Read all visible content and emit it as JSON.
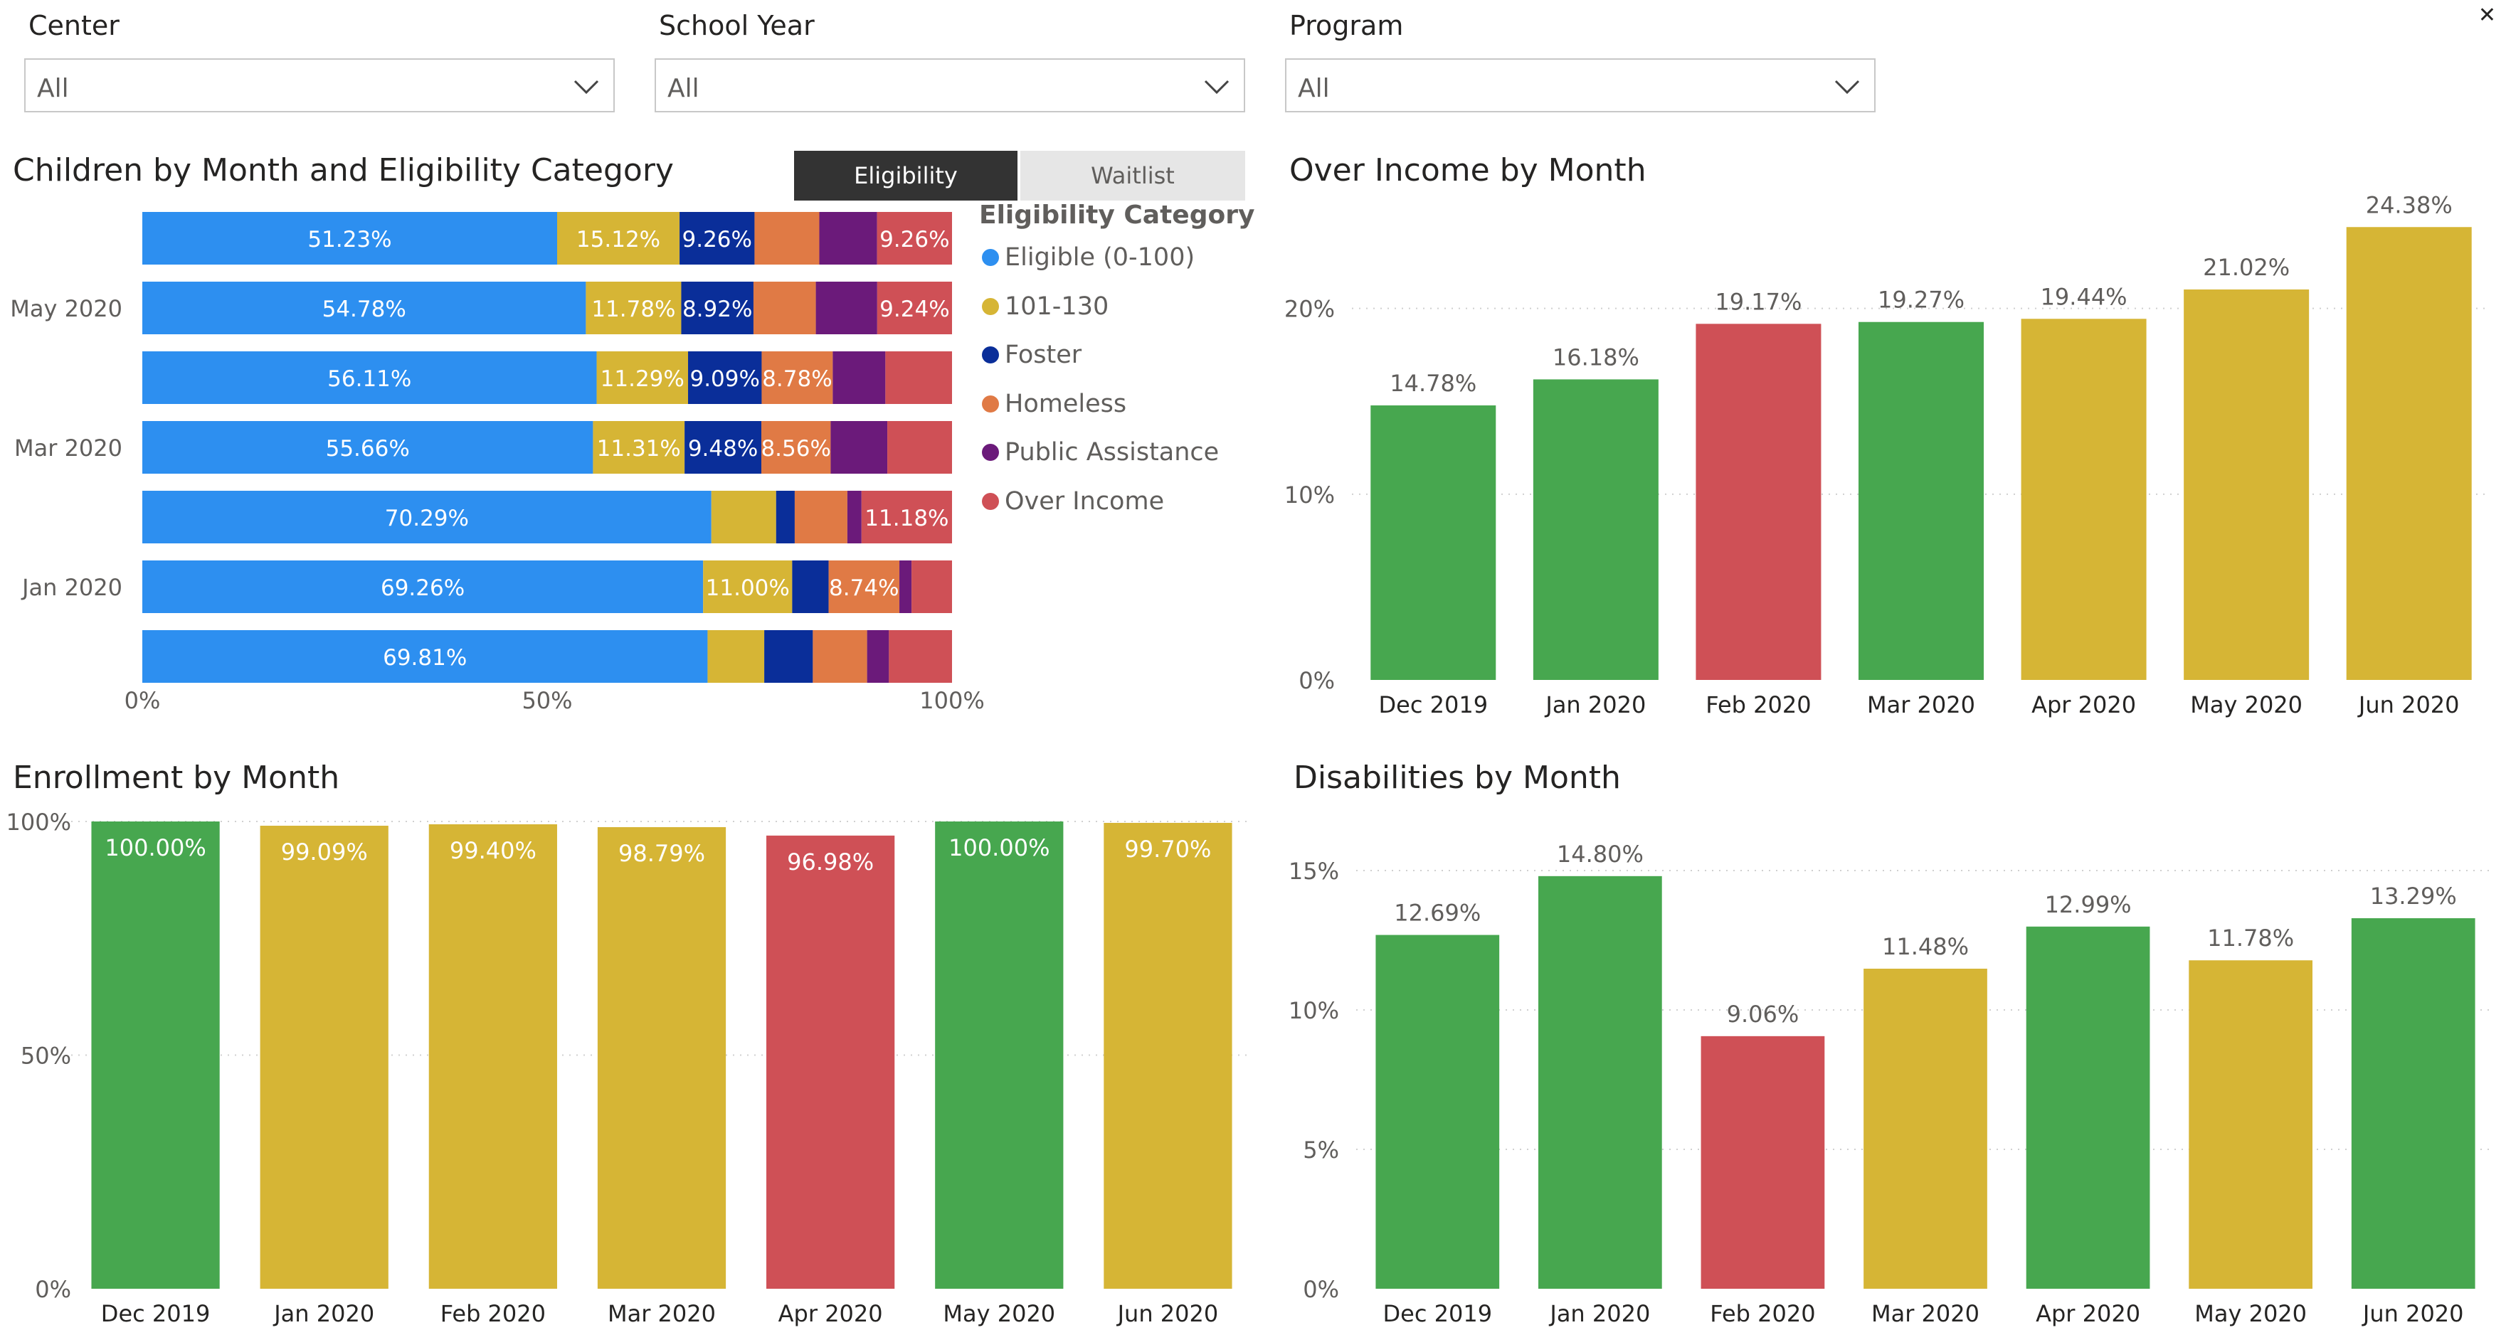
{
  "slicers": [
    {
      "label": "Center",
      "value": "All"
    },
    {
      "label": "School Year",
      "value": "All"
    },
    {
      "label": "Program",
      "value": "All"
    }
  ],
  "toggle": {
    "active": "Eligibility",
    "inactive": "Waitlist"
  },
  "colors": {
    "eligible": "#2d8ff0",
    "band_101_130": "#d6b535",
    "foster": "#0a2e99",
    "homeless": "#e07a45",
    "public_assistance": "#6b1a7a",
    "over_income": "#cf5056",
    "green": "#47a74f",
    "yellow": "#d6b535",
    "red": "#cf5056",
    "toggle_active_bg": "#333333",
    "toggle_inactive_bg": "#e6e6e6"
  },
  "legend": {
    "title": "Eligibility Category",
    "items": [
      "Eligible (0-100)",
      "101-130",
      "Foster",
      "Homeless",
      "Public Assistance",
      "Over Income"
    ]
  },
  "chart_data": [
    {
      "type": "bar",
      "orientation": "horizontal-stacked-100",
      "title": "Children by Month and Eligibility Category",
      "y_tick_labels": [
        "",
        "May 2020",
        "",
        "Mar 2020",
        "",
        "Jan 2020",
        ""
      ],
      "x_tick_labels": [
        "0%",
        "50%",
        "100%"
      ],
      "xlim": [
        0,
        100
      ],
      "series": [
        {
          "name": "Eligible (0-100)",
          "values": [
            51.23,
            54.78,
            56.11,
            55.66,
            70.29,
            69.26,
            69.81
          ],
          "labels": [
            "51.23%",
            "54.78%",
            "56.11%",
            "55.66%",
            "70.29%",
            "69.26%",
            "69.81%"
          ]
        },
        {
          "name": "101-130",
          "values": [
            15.12,
            11.78,
            11.29,
            11.31,
            8.0,
            11.0,
            7.0
          ],
          "labels": [
            "15.12%",
            "11.78%",
            "11.29%",
            "11.31%",
            "",
            "11.00%",
            ""
          ]
        },
        {
          "name": "Foster",
          "values": [
            9.26,
            8.92,
            9.09,
            9.48,
            2.3,
            4.5,
            6.0
          ],
          "labels": [
            "9.26%",
            "8.92%",
            "9.09%",
            "9.48%",
            "",
            "",
            ""
          ]
        },
        {
          "name": "Homeless",
          "values": [
            8.0,
            7.7,
            8.78,
            8.56,
            6.5,
            8.74,
            6.7
          ],
          "labels": [
            "",
            "",
            "8.78%",
            "8.56%",
            "",
            "8.74%",
            ""
          ]
        },
        {
          "name": "Public Assistance",
          "values": [
            7.13,
            7.58,
            6.5,
            7.0,
            1.75,
            1.5,
            2.7
          ],
          "labels": [
            "",
            "",
            "",
            "",
            "",
            "",
            ""
          ]
        },
        {
          "name": "Over Income",
          "values": [
            9.26,
            9.24,
            8.23,
            7.99,
            11.18,
            5.0,
            7.79
          ],
          "labels": [
            "9.26%",
            "9.24%",
            "",
            "",
            "11.18%",
            "",
            ""
          ]
        }
      ]
    },
    {
      "type": "bar",
      "title": "Over Income by Month",
      "categories": [
        "Dec 2019",
        "Jan 2020",
        "Feb 2020",
        "Mar 2020",
        "Apr 2020",
        "May 2020",
        "Jun 2020"
      ],
      "values": [
        14.78,
        16.18,
        19.17,
        19.27,
        19.44,
        21.02,
        24.38
      ],
      "labels": [
        "14.78%",
        "16.18%",
        "19.17%",
        "19.27%",
        "19.44%",
        "21.02%",
        "24.38%"
      ],
      "bar_colors": [
        "green",
        "green",
        "red",
        "green",
        "yellow",
        "yellow",
        "yellow"
      ],
      "y_ticks": [
        0,
        10,
        20
      ],
      "y_tick_labels": [
        "0%",
        "10%",
        "20%"
      ],
      "ylim": [
        0,
        25.5
      ]
    },
    {
      "type": "bar",
      "title": "Enrollment by Month",
      "categories": [
        "Dec 2019",
        "Jan 2020",
        "Feb 2020",
        "Mar 2020",
        "Apr 2020",
        "May 2020",
        "Jun 2020"
      ],
      "values": [
        100.0,
        99.09,
        99.4,
        98.79,
        96.98,
        100.0,
        99.7
      ],
      "labels": [
        "100.00%",
        "99.09%",
        "99.40%",
        "98.79%",
        "96.98%",
        "100.00%",
        "99.70%"
      ],
      "bar_colors": [
        "green",
        "yellow",
        "yellow",
        "yellow",
        "red",
        "green",
        "yellow"
      ],
      "y_ticks": [
        0,
        50,
        100
      ],
      "y_tick_labels": [
        "0%",
        "50%",
        "100%"
      ],
      "ylim": [
        0,
        100
      ]
    },
    {
      "type": "bar",
      "title": "Disabilities by Month",
      "categories": [
        "Dec 2019",
        "Jan 2020",
        "Feb 2020",
        "Mar 2020",
        "Apr 2020",
        "May 2020",
        "Jun 2020"
      ],
      "values": [
        12.69,
        14.8,
        9.06,
        11.48,
        12.99,
        11.78,
        13.29
      ],
      "labels": [
        "12.69%",
        "14.80%",
        "9.06%",
        "11.48%",
        "12.99%",
        "11.78%",
        "13.29%"
      ],
      "bar_colors": [
        "green",
        "green",
        "red",
        "yellow",
        "green",
        "yellow",
        "green"
      ],
      "y_ticks": [
        0,
        5,
        10,
        15
      ],
      "y_tick_labels": [
        "0%",
        "5%",
        "10%",
        "15%"
      ],
      "ylim": [
        0,
        15
      ]
    }
  ]
}
